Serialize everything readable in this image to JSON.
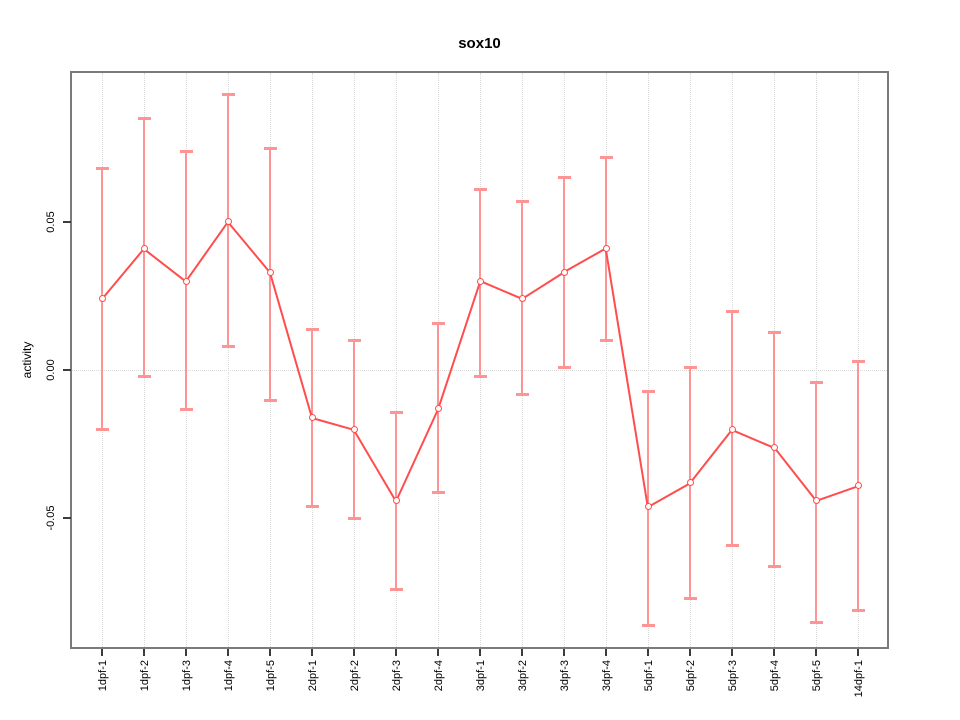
{
  "title": "sox10",
  "chart_data": {
    "type": "line",
    "title": "sox10",
    "xlabel": "",
    "ylabel": "activity",
    "legend": "none",
    "grid": "vertical dotted gridline at every category; dotted horizontal line at y=0",
    "marker": "open-circle",
    "error_bars": true,
    "categories": [
      "1dpf-1",
      "1dpf-2",
      "1dpf-3",
      "1dpf-4",
      "1dpf-5",
      "2dpf-1",
      "2dpf-2",
      "2dpf-3",
      "2dpf-4",
      "3dpf-1",
      "3dpf-2",
      "3dpf-3",
      "3dpf-4",
      "5dpf-1",
      "5dpf-2",
      "5dpf-3",
      "5dpf-4",
      "5dpf-5",
      "14dpf-1"
    ],
    "series": [
      {
        "name": "activity",
        "values": [
          0.024,
          0.041,
          0.03,
          0.05,
          0.033,
          -0.016,
          -0.02,
          -0.044,
          -0.013,
          0.03,
          0.024,
          0.033,
          0.041,
          -0.046,
          -0.038,
          -0.02,
          -0.026,
          -0.044,
          -0.039
        ],
        "error_low": [
          -0.02,
          -0.002,
          -0.013,
          0.008,
          -0.01,
          -0.046,
          -0.05,
          -0.074,
          -0.041,
          -0.002,
          -0.008,
          0.001,
          0.01,
          -0.086,
          -0.077,
          -0.059,
          -0.066,
          -0.085,
          -0.081
        ],
        "error_high": [
          0.068,
          0.085,
          0.074,
          0.093,
          0.075,
          0.014,
          0.01,
          -0.014,
          0.016,
          0.061,
          0.057,
          0.065,
          0.072,
          -0.007,
          0.001,
          0.02,
          0.013,
          -0.004,
          0.003
        ]
      }
    ],
    "ylim": [
      -0.0934,
      0.1002
    ],
    "yticks": [
      {
        "value": 0.05,
        "label": "0.05"
      },
      {
        "value": 0.0,
        "label": "0.00"
      },
      {
        "value": -0.05,
        "label": "-0.05"
      }
    ],
    "colors": {
      "line_and_points": "#ff4d4d",
      "error_bar": "#ff9494",
      "gridline": "#d9d9d9",
      "box_border": "#7b7b7b",
      "tick_mark": "#3c3c3c",
      "tick_text": "#000000"
    }
  }
}
